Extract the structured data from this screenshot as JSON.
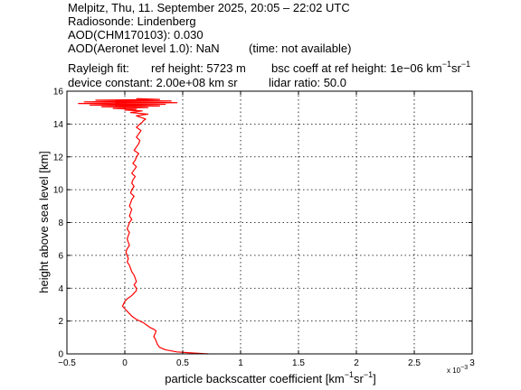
{
  "header": {
    "line1": "Melpitz, Thu, 11. September 2025, 20:05 – 22:02 UTC",
    "line2": "Radiosonde: Lindenberg",
    "line3": "AOD(CHM170103): 0.030",
    "line4_a": "AOD(Aeronet level 1.0): NaN",
    "line4_b": "(time: not available)",
    "rayleigh_label": "Rayleigh fit:",
    "ref_height": "ref height: 5723 m",
    "bsc_coeff_prefix": "bsc coeff at ref height: 1e−06 km",
    "bsc_coeff_exp1": "−1",
    "bsc_coeff_mid": "sr",
    "bsc_coeff_exp2": "−1",
    "device_constant": "device constant: 2.00e+08 km sr",
    "lidar_ratio": "lidar ratio: 50.0"
  },
  "chart_data": {
    "type": "line",
    "xlabel_prefix": "particle backscatter coefficient [km",
    "xlabel_exp1": "−1",
    "xlabel_mid": "sr",
    "xlabel_exp2": "−1",
    "xlabel_suffix": "]",
    "x_multiplier_label": "x 10",
    "x_multiplier_exp": "−3",
    "ylabel": "height above sea level [km]",
    "xlim": [
      -0.5,
      3
    ],
    "ylim": [
      0,
      16
    ],
    "x_ticks": [
      -0.5,
      0,
      0.5,
      1,
      1.5,
      2,
      2.5,
      3
    ],
    "x_tick_labels": [
      "−0.5",
      "0",
      "0.5",
      "1",
      "1.5",
      "2",
      "2.5",
      "3"
    ],
    "y_ticks": [
      0,
      2,
      4,
      6,
      8,
      10,
      12,
      14,
      16
    ],
    "y_tick_labels": [
      "0",
      "2",
      "4",
      "6",
      "8",
      "10",
      "12",
      "14",
      "16"
    ],
    "grid": true,
    "series": [
      {
        "color": "#ff0000",
        "x": [
          0.72,
          0.6,
          0.45,
          0.35,
          0.3,
          0.28,
          0.27,
          0.26,
          0.25,
          0.26,
          0.27,
          0.25,
          0.22,
          0.2,
          0.18,
          0.16,
          0.13,
          0.1,
          0.08,
          0.06,
          0.04,
          0.02,
          0.0,
          -0.02,
          -0.01,
          0.0,
          0.02,
          0.04,
          0.06,
          0.08,
          0.1,
          0.1,
          0.08,
          0.1,
          0.09,
          0.08,
          0.06,
          0.05,
          0.04,
          0.02,
          0.03,
          0.02,
          0.01,
          0.02,
          0.04,
          0.03,
          0.02,
          0.03,
          0.04,
          0.02,
          0.03,
          0.04,
          0.06,
          0.04,
          0.05,
          0.06,
          0.04,
          0.05,
          0.06,
          0.08,
          0.05,
          0.06,
          0.08,
          0.06,
          0.07,
          0.09,
          0.06,
          0.08,
          0.1,
          0.07,
          0.09,
          0.1,
          0.12,
          0.08,
          0.1,
          0.12,
          0.13,
          0.1,
          0.12,
          0.14,
          0.1,
          0.13,
          0.15,
          0.16,
          0.18,
          0.14,
          0.1,
          0.2,
          0.05,
          0.15,
          0.0,
          0.1,
          -0.1,
          0.2,
          -0.2,
          0.3,
          -0.3,
          0.35,
          -0.4,
          0.45,
          -0.35,
          0.4,
          -0.25,
          0.3,
          0.1
        ],
        "y": [
          0.0,
          0.05,
          0.12,
          0.25,
          0.4,
          0.6,
          0.8,
          0.95,
          1.05,
          1.2,
          1.4,
          1.5,
          1.6,
          1.7,
          1.8,
          1.9,
          2.0,
          2.1,
          2.2,
          2.3,
          2.45,
          2.6,
          2.75,
          2.9,
          3.05,
          3.2,
          3.35,
          3.45,
          3.55,
          3.7,
          3.85,
          4.0,
          4.2,
          4.4,
          4.6,
          4.8,
          5.0,
          5.2,
          5.4,
          5.6,
          5.8,
          6.0,
          6.2,
          6.4,
          6.6,
          6.8,
          7.0,
          7.2,
          7.4,
          7.6,
          7.8,
          8.0,
          8.2,
          8.4,
          8.6,
          8.8,
          9.0,
          9.2,
          9.4,
          9.6,
          9.8,
          10.0,
          10.2,
          10.4,
          10.6,
          10.8,
          11.0,
          11.2,
          11.4,
          11.6,
          11.8,
          12.0,
          12.2,
          12.4,
          12.6,
          12.8,
          13.0,
          13.2,
          13.4,
          13.6,
          13.8,
          14.0,
          14.1,
          14.2,
          14.3,
          14.4,
          14.5,
          14.6,
          14.7,
          14.8,
          14.85,
          14.9,
          14.95,
          15.0,
          15.05,
          15.1,
          15.15,
          15.2,
          15.25,
          15.3,
          15.35,
          15.4,
          15.45,
          15.5,
          15.55
        ]
      }
    ]
  }
}
